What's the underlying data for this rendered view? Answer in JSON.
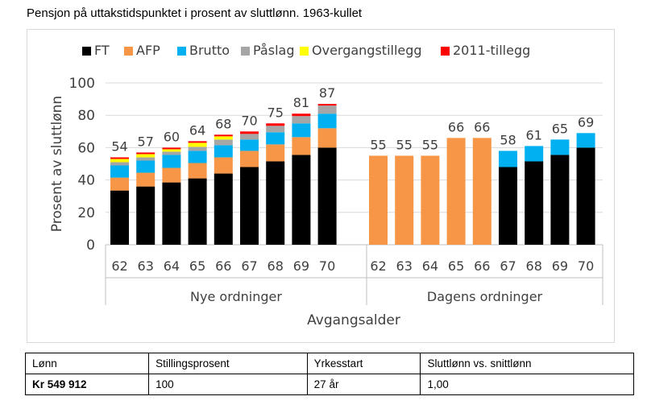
{
  "page_title": "Pensjon på uttakstidspunktet i prosent av sluttlønn. 1963-kullet",
  "chart_data": {
    "type": "bar",
    "stacked": true,
    "ylabel": "Prosent av sluttlønn",
    "xlabel": "Avgangsalder",
    "ylim": [
      0,
      100
    ],
    "yticks": [
      0,
      20,
      40,
      60,
      80,
      100
    ],
    "grid": true,
    "legend_position": "top",
    "series": [
      {
        "name": "FT",
        "color": "#000000"
      },
      {
        "name": "AFP",
        "color": "#f79646"
      },
      {
        "name": "Brutto",
        "color": "#00b0f0"
      },
      {
        "name": "Påslag",
        "color": "#a6a6a6"
      },
      {
        "name": "Overgangstillegg",
        "color": "#ffff00"
      },
      {
        "name": "2011-tillegg",
        "color": "#ff0000"
      }
    ],
    "groups": [
      {
        "label": "Nye ordninger",
        "categories": [
          "62",
          "63",
          "64",
          "65",
          "66",
          "67",
          "68",
          "69",
          "70"
        ],
        "totals": [
          54,
          57,
          60,
          64,
          68,
          70,
          75,
          81,
          87
        ],
        "values": {
          "FT": [
            33.5,
            36,
            38.5,
            41,
            44,
            48,
            51.5,
            55.5,
            60
          ],
          "AFP": [
            8,
            8.5,
            9,
            9.5,
            10,
            10,
            10.5,
            11,
            12
          ],
          "Brutto": [
            7.5,
            7.5,
            8,
            7.5,
            7.5,
            7,
            7.5,
            8.5,
            9
          ],
          "Påslag": [
            2,
            2,
            2,
            2.5,
            3.5,
            3.5,
            4,
            4.5,
            5
          ],
          "Overgangstillegg": [
            2,
            2,
            1.5,
            2.5,
            2,
            0,
            0,
            0,
            0
          ],
          "2011-tillegg": [
            1,
            1,
            1,
            1,
            1,
            1.5,
            1.5,
            1.5,
            1
          ]
        }
      },
      {
        "label": "Dagens ordninger",
        "categories": [
          "62",
          "63",
          "64",
          "65",
          "66",
          "67",
          "68",
          "69",
          "70"
        ],
        "totals": [
          55,
          55,
          55,
          66,
          66,
          58,
          61,
          65,
          69
        ],
        "values": {
          "FT": [
            0,
            0,
            0,
            0,
            0,
            48,
            51.5,
            55.5,
            60
          ],
          "AFP": [
            55,
            55,
            55,
            66,
            66,
            0,
            0,
            0,
            0
          ],
          "Brutto": [
            0,
            0,
            0,
            0,
            0,
            10,
            9.5,
            9.5,
            9
          ],
          "Påslag": [
            0,
            0,
            0,
            0,
            0,
            0,
            0,
            0,
            0
          ],
          "Overgangstillegg": [
            0,
            0,
            0,
            0,
            0,
            0,
            0,
            0,
            0
          ],
          "2011-tillegg": [
            0,
            0,
            0,
            0,
            0,
            0,
            0,
            0,
            0
          ]
        }
      }
    ]
  },
  "info_table": {
    "headers": [
      "Lønn",
      "Stillingsprosent",
      "Yrkesstart",
      "Sluttlønn vs. snittlønn"
    ],
    "values": [
      "Kr 549 912",
      "100",
      "27 år",
      "1,00"
    ]
  }
}
